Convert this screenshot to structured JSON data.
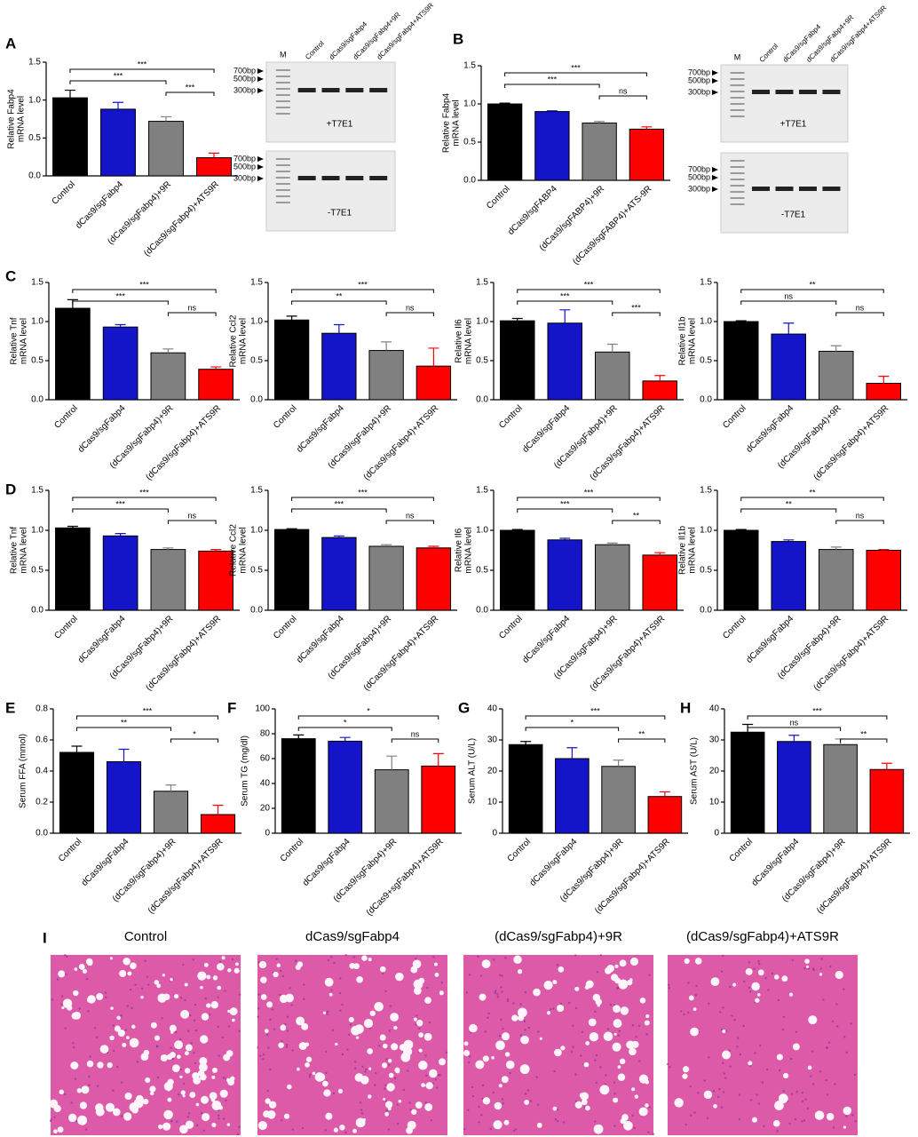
{
  "chart_data": [
    {
      "type": "bar",
      "panel": "A",
      "ylabel": [
        "Relative Fabp4",
        "mRNA level"
      ],
      "categories": [
        "Control",
        "dCas9/sgFabp4",
        "(dCas9/sgFabp4)+9R",
        "(dCas9/sgFabp4)+ATS9R"
      ],
      "values": [
        1.03,
        0.88,
        0.72,
        0.24
      ],
      "errors": [
        0.1,
        0.09,
        0.06,
        0.06
      ],
      "colors": [
        "#000000",
        "#1414c8",
        "#808080",
        "#ff0000"
      ],
      "ylim": [
        0,
        1.5
      ],
      "yticks": [
        {
          "value": 0,
          "label": "0.0"
        },
        {
          "value": 0.5,
          "label": "0.5"
        },
        {
          "value": 1,
          "label": "1.0"
        },
        {
          "value": 1.5,
          "label": "1.5"
        }
      ],
      "comparisons": [
        {
          "pair": [
            "Control",
            "(dCas9/sgFabp4)+ATS9R"
          ],
          "label": "***"
        },
        {
          "pair": [
            "Control",
            "(dCas9/sgFabp4)+9R"
          ],
          "label": "***"
        },
        {
          "pair": [
            "(dCas9/sgFabp4)+9R",
            "(dCas9/sgFabp4)+ATS9R"
          ],
          "label": "***"
        }
      ]
    },
    {
      "type": "bar",
      "panel": "B",
      "ylabel": [
        "Relative Fabp4",
        "mRNA level"
      ],
      "categories": [
        "Control",
        "dCas9/sgFABP4",
        "(dCas9/sgFABP4)+9R",
        "(dCas9/sgFABP4)+ATS-9R"
      ],
      "values": [
        1.0,
        0.9,
        0.75,
        0.67
      ],
      "errors": [
        0.01,
        0.01,
        0.02,
        0.03
      ],
      "colors": [
        "#000000",
        "#1414c8",
        "#808080",
        "#ff0000"
      ],
      "ylim": [
        0,
        1.5
      ],
      "yticks": [
        {
          "value": 0,
          "label": "0.0"
        },
        {
          "value": 0.5,
          "label": "0.5"
        },
        {
          "value": 1,
          "label": "1.0"
        },
        {
          "value": 1.5,
          "label": "1.5"
        }
      ],
      "comparisons": [
        {
          "pair": [
            "Control",
            "(dCas9/sgFABP4)+ATS-9R"
          ],
          "label": "***"
        },
        {
          "pair": [
            "Control",
            "(dCas9/sgFABP4)+9R"
          ],
          "label": "***"
        },
        {
          "pair": [
            "(dCas9/sgFABP4)+9R",
            "(dCas9/sgFABP4)+ATS-9R"
          ],
          "label": "ns"
        }
      ]
    },
    {
      "type": "bar",
      "panel": "C",
      "ylabel": [
        "Relative Tnf",
        "mRNA level"
      ],
      "categories": [
        "Control",
        "dCas9/sgFabp4",
        "(dCas9/sgFabp4)+9R",
        "(dCas9/sgFabp4)+ATS9R"
      ],
      "values": [
        1.17,
        0.93,
        0.6,
        0.39
      ],
      "errors": [
        0.11,
        0.03,
        0.05,
        0.03
      ],
      "colors": [
        "#000000",
        "#1414c8",
        "#808080",
        "#ff0000"
      ],
      "ylim": [
        0,
        1.5
      ],
      "yticks": [
        {
          "value": 0,
          "label": "0.0"
        },
        {
          "value": 0.5,
          "label": "0.5"
        },
        {
          "value": 1,
          "label": "1.0"
        },
        {
          "value": 1.5,
          "label": "1.5"
        }
      ],
      "comparisons": [
        {
          "pair": [
            "Control",
            "(dCas9/sgFabp4)+ATS9R"
          ],
          "label": "***"
        },
        {
          "pair": [
            "Control",
            "(dCas9/sgFabp4)+9R"
          ],
          "label": "***"
        },
        {
          "pair": [
            "(dCas9/sgFabp4)+9R",
            "(dCas9/sgFabp4)+ATS9R"
          ],
          "label": "ns"
        }
      ]
    },
    {
      "type": "bar",
      "ylabel": [
        "Relative Ccl2",
        "mRNA level"
      ],
      "categories": [
        "Control",
        "dCas9/sgFabp4",
        "(dCas9/sgFabp4)+9R",
        "(dCas9/sgFabp4)+ATS9R"
      ],
      "values": [
        1.02,
        0.85,
        0.63,
        0.43
      ],
      "errors": [
        0.05,
        0.11,
        0.11,
        0.23
      ],
      "colors": [
        "#000000",
        "#1414c8",
        "#808080",
        "#ff0000"
      ],
      "ylim": [
        0,
        1.5
      ],
      "yticks": [
        {
          "value": 0,
          "label": "0.0"
        },
        {
          "value": 0.5,
          "label": "0.5"
        },
        {
          "value": 1,
          "label": "1.0"
        },
        {
          "value": 1.5,
          "label": "1.5"
        }
      ],
      "comparisons": [
        {
          "pair": [
            "Control",
            "(dCas9/sgFabp4)+ATS9R"
          ],
          "label": "***"
        },
        {
          "pair": [
            "Control",
            "(dCas9/sgFabp4)+9R"
          ],
          "label": "**"
        },
        {
          "pair": [
            "(dCas9/sgFabp4)+9R",
            "(dCas9/sgFabp4)+ATS9R"
          ],
          "label": "ns"
        }
      ]
    },
    {
      "type": "bar",
      "ylabel": [
        "Relative Il6",
        "mRNA level"
      ],
      "categories": [
        "Control",
        "dCas9/sgFabp4",
        "(dCas9/sgFabp4)+9R",
        "(dCas9/sgFabp4)+ATS9R"
      ],
      "values": [
        1.01,
        0.98,
        0.61,
        0.24
      ],
      "errors": [
        0.03,
        0.17,
        0.1,
        0.07
      ],
      "colors": [
        "#000000",
        "#1414c8",
        "#808080",
        "#ff0000"
      ],
      "ylim": [
        0,
        1.5
      ],
      "yticks": [
        {
          "value": 0,
          "label": "0.0"
        },
        {
          "value": 0.5,
          "label": "0.5"
        },
        {
          "value": 1,
          "label": "1.0"
        },
        {
          "value": 1.5,
          "label": "1.5"
        }
      ],
      "comparisons": [
        {
          "pair": [
            "Control",
            "(dCas9/sgFabp4)+ATS9R"
          ],
          "label": "***"
        },
        {
          "pair": [
            "Control",
            "(dCas9/sgFabp4)+9R"
          ],
          "label": "***"
        },
        {
          "pair": [
            "(dCas9/sgFabp4)+9R",
            "(dCas9/sgFabp4)+ATS9R"
          ],
          "label": "***"
        }
      ]
    },
    {
      "type": "bar",
      "ylabel": [
        "Relative Il1b",
        "mRNA level"
      ],
      "categories": [
        "Control",
        "dCas9/sgFabp4",
        "(dCas9/sgFabp4)+9R",
        "(dCas9/sgFabp4)+ATS9R"
      ],
      "values": [
        1.0,
        0.84,
        0.62,
        0.21
      ],
      "errors": [
        0.01,
        0.14,
        0.07,
        0.09
      ],
      "colors": [
        "#000000",
        "#1414c8",
        "#808080",
        "#ff0000"
      ],
      "ylim": [
        0,
        1.5
      ],
      "yticks": [
        {
          "value": 0,
          "label": "0.0"
        },
        {
          "value": 0.5,
          "label": "0.5"
        },
        {
          "value": 1,
          "label": "1.0"
        },
        {
          "value": 1.5,
          "label": "1.5"
        }
      ],
      "comparisons": [
        {
          "pair": [
            "Control",
            "(dCas9/sgFabp4)+ATS9R"
          ],
          "label": "**"
        },
        {
          "pair": [
            "Control",
            "(dCas9/sgFabp4)+9R"
          ],
          "label": "ns"
        },
        {
          "pair": [
            "(dCas9/sgFabp4)+9R",
            "(dCas9/sgFabp4)+ATS9R"
          ],
          "label": "ns"
        }
      ]
    },
    {
      "type": "bar",
      "panel": "D",
      "ylabel": [
        "Relative Tnf",
        "mRNA level"
      ],
      "categories": [
        "Control",
        "dCas9/sgFabp4",
        "(dCas9/sgFabp4)+9R",
        "(dCas9/sgFabp4)+ATS9R"
      ],
      "values": [
        1.03,
        0.93,
        0.76,
        0.74
      ],
      "errors": [
        0.02,
        0.03,
        0.02,
        0.02
      ],
      "colors": [
        "#000000",
        "#1414c8",
        "#808080",
        "#ff0000"
      ],
      "ylim": [
        0,
        1.5
      ],
      "yticks": [
        {
          "value": 0,
          "label": "0.0"
        },
        {
          "value": 0.5,
          "label": "0.5"
        },
        {
          "value": 1,
          "label": "1.0"
        },
        {
          "value": 1.5,
          "label": "1.5"
        }
      ],
      "comparisons": [
        {
          "pair": [
            "Control",
            "(dCas9/sgFabp4)+ATS9R"
          ],
          "label": "***"
        },
        {
          "pair": [
            "Control",
            "(dCas9/sgFabp4)+9R"
          ],
          "label": "***"
        },
        {
          "pair": [
            "(dCas9/sgFabp4)+9R",
            "(dCas9/sgFabp4)+ATS9R"
          ],
          "label": "ns"
        }
      ]
    },
    {
      "type": "bar",
      "ylabel": [
        "Relative Ccl2",
        "mRNA level"
      ],
      "categories": [
        "Control",
        "dCas9/sgFabp4",
        "(dCas9/sgFabp4)+9R",
        "(dCas9/sgFabp4)+ATS9R"
      ],
      "values": [
        1.01,
        0.91,
        0.8,
        0.78
      ],
      "errors": [
        0.01,
        0.02,
        0.02,
        0.02
      ],
      "colors": [
        "#000000",
        "#1414c8",
        "#808080",
        "#ff0000"
      ],
      "ylim": [
        0,
        1.5
      ],
      "yticks": [
        {
          "value": 0,
          "label": "0.0"
        },
        {
          "value": 0.5,
          "label": "0.5"
        },
        {
          "value": 1,
          "label": "1.0"
        },
        {
          "value": 1.5,
          "label": "1.5"
        }
      ],
      "comparisons": [
        {
          "pair": [
            "Control",
            "(dCas9/sgFabp4)+ATS9R"
          ],
          "label": "***"
        },
        {
          "pair": [
            "Control",
            "(dCas9/sgFabp4)+9R"
          ],
          "label": "***"
        },
        {
          "pair": [
            "(dCas9/sgFabp4)+9R",
            "(dCas9/sgFabp4)+ATS9R"
          ],
          "label": "ns"
        }
      ]
    },
    {
      "type": "bar",
      "ylabel": [
        "Relative Il6",
        "mRNA level"
      ],
      "categories": [
        "Control",
        "dCas9/sgFabp4",
        "(dCas9/sgFabp4)+9R",
        "(dCas9/sgFabp4)+ATS9R"
      ],
      "values": [
        1.0,
        0.88,
        0.82,
        0.69
      ],
      "errors": [
        0.01,
        0.02,
        0.02,
        0.03
      ],
      "colors": [
        "#000000",
        "#1414c8",
        "#808080",
        "#ff0000"
      ],
      "ylim": [
        0,
        1.5
      ],
      "yticks": [
        {
          "value": 0,
          "label": "0.0"
        },
        {
          "value": 0.5,
          "label": "0.5"
        },
        {
          "value": 1,
          "label": "1.0"
        },
        {
          "value": 1.5,
          "label": "1.5"
        }
      ],
      "comparisons": [
        {
          "pair": [
            "Control",
            "(dCas9/sgFabp4)+ATS9R"
          ],
          "label": "***"
        },
        {
          "pair": [
            "Control",
            "(dCas9/sgFabp4)+9R"
          ],
          "label": "***"
        },
        {
          "pair": [
            "(dCas9/sgFabp4)+9R",
            "(dCas9/sgFabp4)+ATS9R"
          ],
          "label": "**"
        }
      ]
    },
    {
      "type": "bar",
      "ylabel": [
        "Relative Il1b",
        "mRNA level"
      ],
      "categories": [
        "Control",
        "dCas9/sgFabp4",
        "(dCas9/sgFabp4)+9R",
        "(dCas9/sgFabp4)+ATS9R"
      ],
      "values": [
        1.0,
        0.86,
        0.76,
        0.75
      ],
      "errors": [
        0.01,
        0.02,
        0.03,
        0.01
      ],
      "colors": [
        "#000000",
        "#1414c8",
        "#808080",
        "#ff0000"
      ],
      "ylim": [
        0,
        1.5
      ],
      "yticks": [
        {
          "value": 0,
          "label": "0.0"
        },
        {
          "value": 0.5,
          "label": "0.5"
        },
        {
          "value": 1,
          "label": "1.0"
        },
        {
          "value": 1.5,
          "label": "1.5"
        }
      ],
      "comparisons": [
        {
          "pair": [
            "Control",
            "(dCas9/sgFabp4)+ATS9R"
          ],
          "label": "**"
        },
        {
          "pair": [
            "Control",
            "(dCas9/sgFabp4)+9R"
          ],
          "label": "**"
        },
        {
          "pair": [
            "(dCas9/sgFabp4)+9R",
            "(dCas9/sgFabp4)+ATS9R"
          ],
          "label": "ns"
        }
      ]
    },
    {
      "type": "bar",
      "panel": "E",
      "ylabel": [
        "Serum FFA (mmol)"
      ],
      "categories": [
        "Control",
        "dCas9/sgFabp4",
        "(dCas9/sgFabp4)+9R",
        "(dCas9/sgFabp4)+ATS9R"
      ],
      "values": [
        0.52,
        0.46,
        0.27,
        0.12
      ],
      "errors": [
        0.04,
        0.08,
        0.04,
        0.06
      ],
      "colors": [
        "#000000",
        "#1414c8",
        "#808080",
        "#ff0000"
      ],
      "ylim": [
        0,
        0.8
      ],
      "yticks": [
        {
          "value": 0,
          "label": "0.0"
        },
        0.2,
        0.4,
        0.6,
        0.8
      ],
      "comparisons": [
        {
          "pair": [
            "Control",
            "(dCas9/sgFabp4)+ATS9R"
          ],
          "label": "***"
        },
        {
          "pair": [
            "Control",
            "(dCas9/sgFabp4)+9R"
          ],
          "label": "**"
        },
        {
          "pair": [
            "(dCas9/sgFabp4)+9R",
            "(dCas9/sgFabp4)+ATS9R"
          ],
          "label": "*"
        }
      ]
    },
    {
      "type": "bar",
      "panel": "F",
      "ylabel": [
        "Serum TG (mg/dl)"
      ],
      "categories": [
        "Control",
        "dCas9/sgFabp4",
        "(dCas9/sgFabp4)+9R",
        "(dCas9+sgFabp4)+ATS9R"
      ],
      "values": [
        76,
        74,
        51,
        54
      ],
      "errors": [
        3,
        3,
        11,
        10
      ],
      "colors": [
        "#000000",
        "#1414c8",
        "#808080",
        "#ff0000"
      ],
      "ylim": [
        0,
        100
      ],
      "yticks": [
        0,
        20,
        40,
        60,
        80,
        100
      ],
      "comparisons": [
        {
          "pair": [
            "Control",
            "(dCas9+sgFabp4)+ATS9R"
          ],
          "label": "*"
        },
        {
          "pair": [
            "Control",
            "(dCas9/sgFabp4)+9R"
          ],
          "label": "*"
        },
        {
          "pair": [
            "(dCas9/sgFabp4)+9R",
            "(dCas9+sgFabp4)+ATS9R"
          ],
          "label": "ns"
        }
      ]
    },
    {
      "type": "bar",
      "panel": "G",
      "ylabel": [
        "Serum ALT (U/L)"
      ],
      "categories": [
        "Control",
        "dCas9/sgFabp4",
        "(dCas9/sgFabp4)+9R",
        "(dCas9/sgFabp4)+ATS9R"
      ],
      "values": [
        28.5,
        24,
        21.5,
        11.8
      ],
      "errors": [
        1,
        3.5,
        2,
        1.5
      ],
      "colors": [
        "#000000",
        "#1414c8",
        "#808080",
        "#ff0000"
      ],
      "ylim": [
        0,
        40
      ],
      "yticks": [
        0,
        10,
        20,
        30,
        40
      ],
      "comparisons": [
        {
          "pair": [
            "Control",
            "(dCas9/sgFabp4)+ATS9R"
          ],
          "label": "***"
        },
        {
          "pair": [
            "Control",
            "(dCas9/sgFabp4)+9R"
          ],
          "label": "*"
        },
        {
          "pair": [
            "(dCas9/sgFabp4)+9R",
            "(dCas9/sgFabp4)+ATS9R"
          ],
          "label": "**"
        }
      ]
    },
    {
      "type": "bar",
      "panel": "H",
      "ylabel": [
        "Serum AST (U/L)"
      ],
      "categories": [
        "Control",
        "dCas9/sgFabp4",
        "(dCas9/sgFabp4)+9R",
        "(dCas9/sgFabp4)+ATS9R"
      ],
      "values": [
        32.5,
        29.5,
        28.5,
        20.5
      ],
      "errors": [
        2.5,
        2,
        1.8,
        2
      ],
      "colors": [
        "#000000",
        "#1414c8",
        "#808080",
        "#ff0000"
      ],
      "ylim": [
        0,
        40
      ],
      "yticks": [
        0,
        10,
        20,
        30,
        40
      ],
      "comparisons": [
        {
          "pair": [
            "Control",
            "(dCas9/sgFabp4)+ATS9R"
          ],
          "label": "***"
        },
        {
          "pair": [
            "Control",
            "(dCas9/sgFabp4)+9R"
          ],
          "label": "ns"
        },
        {
          "pair": [
            "(dCas9/sgFabp4)+9R",
            "(dCas9/sgFabp4)+ATS9R"
          ],
          "label": "**"
        }
      ]
    }
  ],
  "gels": [
    {
      "ladder": "M",
      "lanes": [
        "Control",
        "dCas9/sgFabp4",
        "dCas9/sgFabp4+9R",
        "dCas9/sgFabp4+ATS9R"
      ],
      "markers": [
        "700bp",
        "500bp",
        "300bp"
      ],
      "upper": "+T7E1",
      "lower": "-T7E1"
    },
    {
      "ladder": "M",
      "lanes": [
        "Control",
        "dCas9/sgFabp4",
        "dCas9/sgFabp4+9R",
        "dCas9/sgFabp4+ATS9R"
      ],
      "markers": [
        "700bp",
        "500bp",
        "300bp"
      ],
      "upper": "+T7E1",
      "lower": "-T7E1"
    }
  ],
  "histology": {
    "panel": "I",
    "titles": [
      "Control",
      "dCas9/sgFabp4",
      "(dCas9/sgFabp4)+9R",
      "(dCas9/sgFabp4)+ATS9R"
    ]
  }
}
